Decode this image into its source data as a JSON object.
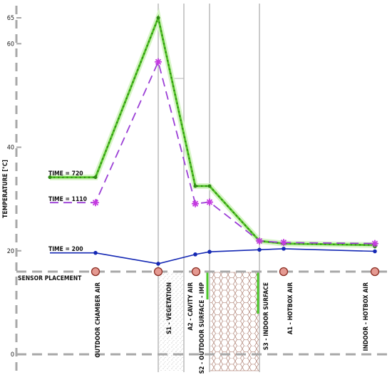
{
  "chart_data": {
    "type": "line",
    "ylabel": "TEMPERATURE [°C]",
    "yticks": [
      0,
      20,
      40,
      60,
      65
    ],
    "ylim": [
      0,
      68
    ],
    "x_positions": [
      "OUTDOOR CHAMBER AIR",
      "S1 - VEGETATION",
      "A2 - CAVITY AIR",
      "S2 - OUTDOOR SURFACE - IMP",
      "S3 - INDOOR SURFACE",
      "A1 - HOTBOX AIR",
      "INDOOR - HOTBOX AIR"
    ],
    "sensor_placement_label": "SENSOR PLACEMENT",
    "series": [
      {
        "name": "TIME = 720",
        "color": "#55c42a",
        "style": "dotted-thick",
        "points": [
          [
            0,
            34.2
          ],
          [
            0,
            34.2
          ],
          [
            1,
            65
          ],
          [
            2,
            32.5
          ],
          [
            2.6,
            32.5
          ],
          [
            3.6,
            21.9
          ],
          [
            4,
            21.4
          ],
          [
            5,
            21.1
          ],
          [
            6,
            20.8
          ]
        ]
      },
      {
        "name": "TIME = 1110",
        "color": "#9b3fd6",
        "style": "dashed-star",
        "points": [
          [
            0,
            29.3
          ],
          [
            0.2,
            29.3
          ],
          [
            1,
            56.5
          ],
          [
            2,
            29.1
          ],
          [
            2.6,
            29.4
          ],
          [
            3.6,
            21.9
          ],
          [
            4,
            21.6
          ],
          [
            6,
            21.4
          ]
        ]
      },
      {
        "name": "TIME = 200",
        "color": "#1428b4",
        "style": "solid-dot",
        "points": [
          [
            0,
            19.6
          ],
          [
            0.4,
            19.6
          ],
          [
            1,
            17.5
          ],
          [
            2,
            19.3
          ],
          [
            2.6,
            19.8
          ],
          [
            3.6,
            20.2
          ],
          [
            4,
            20.4
          ],
          [
            6,
            19.9
          ]
        ]
      }
    ]
  }
}
